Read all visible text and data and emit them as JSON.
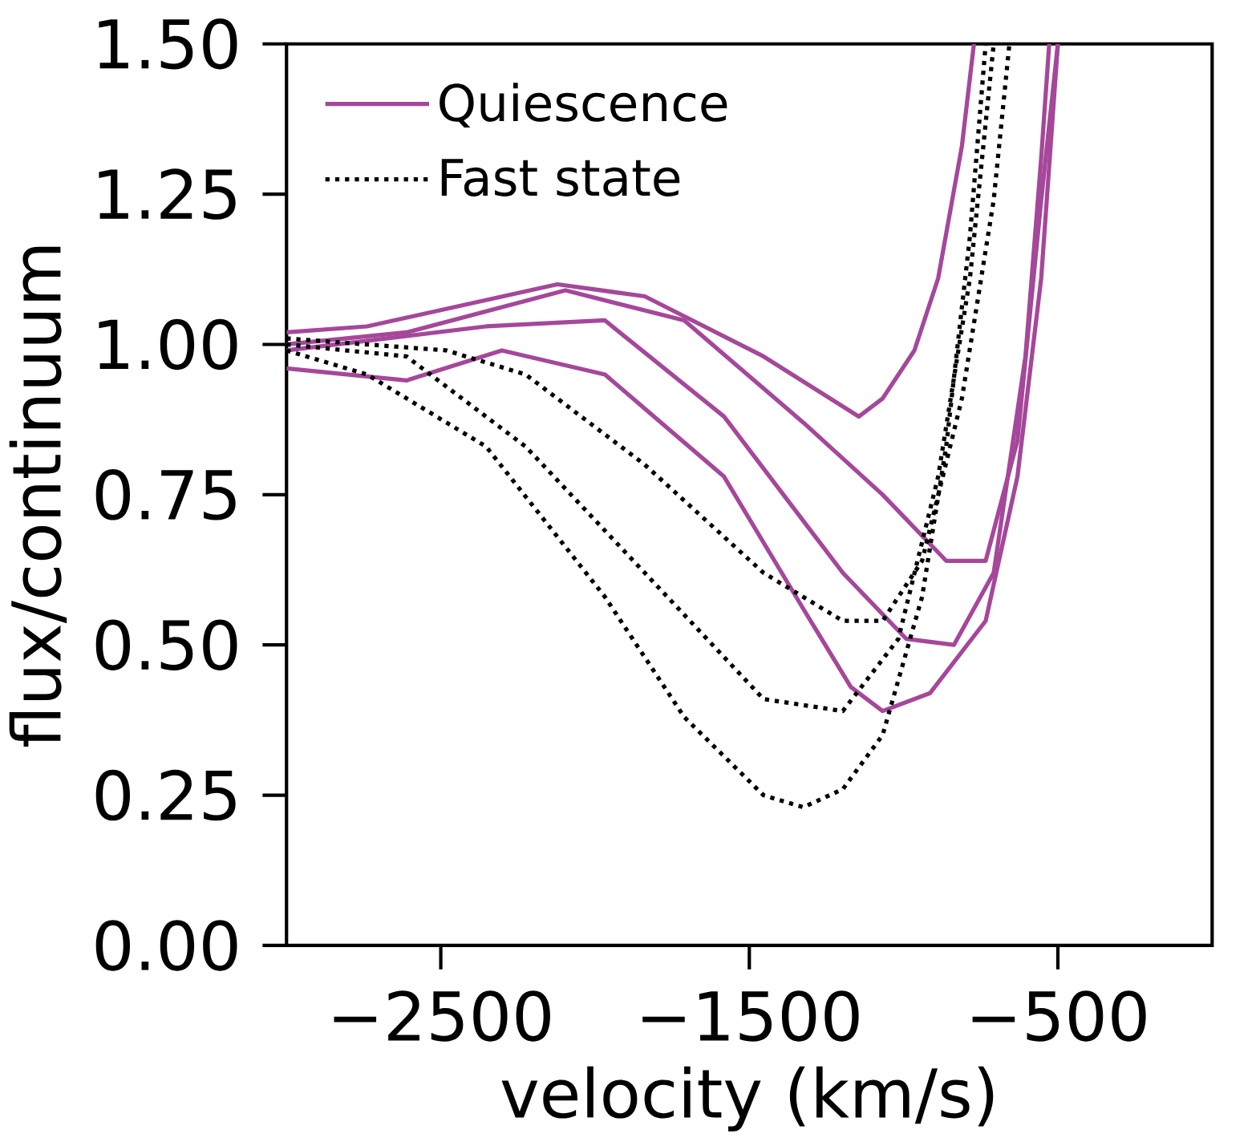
{
  "chart_data": {
    "type": "line",
    "xlabel": "velocity (km/s)",
    "ylabel": "flux/continuum",
    "xlim": [
      -3000,
      0
    ],
    "ylim": [
      0,
      1.5
    ],
    "xticks": [
      {
        "value": -2500,
        "label": "−2500"
      },
      {
        "value": -1500,
        "label": "−1500"
      },
      {
        "value": -500,
        "label": "−500"
      }
    ],
    "yticks": [
      {
        "value": 0,
        "label": "0.00"
      },
      {
        "value": 0.25,
        "label": "0.25"
      },
      {
        "value": 0.5,
        "label": "0.50"
      },
      {
        "value": 0.75,
        "label": "0.75"
      },
      {
        "value": 1.0,
        "label": "1.00"
      },
      {
        "value": 1.25,
        "label": "1.25"
      },
      {
        "value": 1.5,
        "label": "1.50"
      }
    ],
    "legend": "top left",
    "grid": false,
    "series": [
      {
        "name": "Quiescence",
        "color": "#a5479a",
        "line_style": "solid",
        "x": [
          -3000,
          -2739,
          -2122,
          -1839,
          -1454,
          -1145,
          -1068,
          -965,
          -888,
          -811,
          -772
        ],
        "values": [
          1.02,
          1.03,
          1.1,
          1.08,
          0.98,
          0.88,
          0.91,
          0.99,
          1.11,
          1.33,
          1.5
        ]
      },
      {
        "color": "#a5479a",
        "line_style": "solid",
        "x": [
          -3000,
          -2611,
          -2302,
          -1968,
          -1582,
          -1325,
          -1171,
          -1068,
          -914,
          -734,
          -631,
          -554,
          -500
        ],
        "values": [
          0.96,
          0.94,
          0.99,
          0.95,
          0.78,
          0.56,
          0.43,
          0.39,
          0.42,
          0.54,
          0.78,
          1.11,
          1.5
        ]
      },
      {
        "color": "#a5479a",
        "line_style": "solid",
        "x": [
          -3000,
          -2611,
          -2096,
          -1711,
          -1325,
          -1068,
          -862,
          -734,
          -631,
          -554,
          -500
        ],
        "values": [
          1.0,
          1.02,
          1.09,
          1.04,
          0.87,
          0.75,
          0.64,
          0.64,
          0.84,
          1.24,
          1.5
        ]
      },
      {
        "color": "#a5479a",
        "line_style": "solid",
        "x": [
          -3000,
          -2353,
          -1968,
          -1582,
          -1197,
          -991,
          -837,
          -708,
          -605,
          -554,
          -528
        ],
        "values": [
          0.99,
          1.03,
          1.04,
          0.88,
          0.62,
          0.51,
          0.5,
          0.62,
          0.98,
          1.31,
          1.5
        ]
      },
      {
        "name": "Fast state",
        "color": "#000000",
        "line_style": "dotted",
        "x": [
          -3000,
          -2739,
          -2353,
          -1968,
          -1711,
          -1454,
          -1325,
          -1197,
          -1068,
          -940,
          -862,
          -785,
          -734
        ],
        "values": [
          0.99,
          0.95,
          0.83,
          0.58,
          0.38,
          0.25,
          0.23,
          0.26,
          0.35,
          0.58,
          0.83,
          1.18,
          1.5
        ]
      },
      {
        "color": "#000000",
        "line_style": "dotted",
        "x": [
          -3000,
          -2482,
          -2225,
          -1839,
          -1454,
          -1197,
          -1068,
          -940,
          -811,
          -708,
          -657
        ],
        "values": [
          1.01,
          0.99,
          0.95,
          0.8,
          0.62,
          0.54,
          0.54,
          0.64,
          0.91,
          1.24,
          1.5
        ]
      },
      {
        "color": "#000000",
        "line_style": "dotted",
        "x": [
          -3000,
          -2611,
          -2225,
          -1839,
          -1454,
          -1197,
          -1017,
          -888,
          -785,
          -708
        ],
        "values": [
          1.0,
          0.98,
          0.83,
          0.62,
          0.41,
          0.39,
          0.51,
          0.78,
          1.11,
          1.5
        ]
      }
    ]
  }
}
